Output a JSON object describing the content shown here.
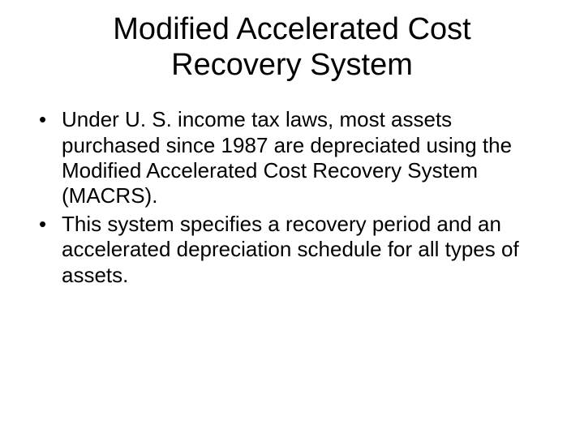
{
  "slide": {
    "title": "Modified Accelerated Cost Recovery System",
    "bullets": [
      "Under U. S. income tax laws, most assets purchased since 1987 are depreciated using the Modified Accelerated Cost Recovery System (MACRS).",
      "This system specifies a recovery period and an accelerated depreciation schedule for all types of assets."
    ]
  },
  "styling": {
    "background_color": "#ffffff",
    "text_color": "#000000",
    "title_fontsize": 38,
    "body_fontsize": 26,
    "font_family": "Arial"
  }
}
